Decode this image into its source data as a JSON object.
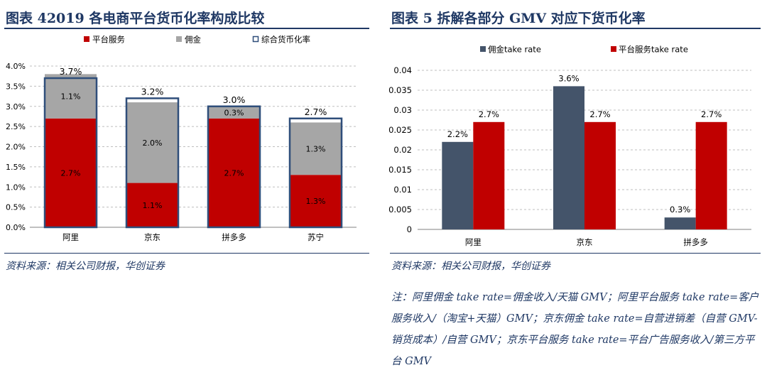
{
  "left": {
    "title": "图表 42019 各电商平台货币化率构成比较",
    "source": "资料来源：相关公司财报，华创证券",
    "colors": {
      "platform": "#c00000",
      "commission": "#a6a6a6",
      "outline": "#2f4e7a"
    },
    "chart_data": {
      "type": "bar",
      "stacked": true,
      "categories": [
        "阿里",
        "京东",
        "拼多多",
        "苏宁"
      ],
      "series": [
        {
          "name": "平台服务",
          "values": [
            2.7,
            1.1,
            2.7,
            1.3
          ],
          "labels": [
            "2.7%",
            "1.1%",
            "2.7%",
            "1.3%"
          ]
        },
        {
          "name": "佣金",
          "values": [
            1.1,
            2.0,
            0.3,
            1.3
          ],
          "labels": [
            "1.1%",
            "2.0%",
            "0.3%",
            "1.3%"
          ]
        },
        {
          "name": "综合货币化率",
          "values": [
            3.7,
            3.2,
            3.0,
            2.7
          ],
          "labels": [
            "3.7%",
            "3.2%",
            "3.0%",
            "2.7%"
          ]
        }
      ],
      "ylim": [
        0,
        4.0
      ],
      "yticks": [
        "0.0%",
        "0.5%",
        "1.0%",
        "1.5%",
        "2.0%",
        "2.5%",
        "3.0%",
        "3.5%",
        "4.0%"
      ],
      "grid": true,
      "legend": "top"
    }
  },
  "right": {
    "title": "图表 5 拆解各部分 GMV 对应下货币化率",
    "source": "资料来源：相关公司财报，华创证券",
    "colors": {
      "commission": "#44546a",
      "platform": "#c00000"
    },
    "chart_data": {
      "type": "bar",
      "categories": [
        "阿里",
        "京东",
        "拼多多"
      ],
      "series": [
        {
          "name": "佣金take rate",
          "values": [
            0.022,
            0.036,
            0.003
          ],
          "labels": [
            "2.2%",
            "3.6%",
            "0.3%"
          ]
        },
        {
          "name": "平台服务take rate",
          "values": [
            0.027,
            0.027,
            0.027
          ],
          "labels": [
            "2.7%",
            "2.7%",
            "2.7%"
          ]
        }
      ],
      "ylim": [
        0,
        0.04
      ],
      "yticks": [
        "0",
        "0.005",
        "0.01",
        "0.015",
        "0.02",
        "0.025",
        "0.03",
        "0.035",
        "0.04"
      ],
      "grid": true,
      "legend": "top"
    }
  },
  "note": "注：阿里佣金 take rate=佣金收入/天猫 GMV；阿里平台服务 take rate=客户服务收入/（淘宝+天猫）GMV；京东佣金 take rate=自营进销差（自营 GMV-销货成本）/自营 GMV；京东平台服务 take rate=平台广告服务收入/第三方平台 GMV"
}
